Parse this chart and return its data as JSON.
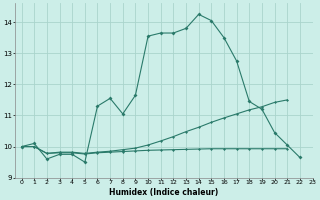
{
  "xlabel": "Humidex (Indice chaleur)",
  "bg_color": "#cceee8",
  "line_color": "#2a7a6a",
  "grid_color": "#aad4cc",
  "line1_y": [
    10.0,
    10.1,
    9.6,
    9.75,
    9.75,
    9.5,
    11.3,
    11.55,
    11.05,
    11.65,
    13.55,
    13.65,
    13.65,
    13.8,
    14.25,
    14.05,
    13.5,
    12.75,
    11.45,
    11.2,
    10.45,
    10.05,
    9.65,
    null
  ],
  "line2_y": [
    10.0,
    10.0,
    9.78,
    9.82,
    9.82,
    9.78,
    9.82,
    9.85,
    9.9,
    9.95,
    10.05,
    10.18,
    10.32,
    10.48,
    10.62,
    10.78,
    10.92,
    11.05,
    11.18,
    11.28,
    11.42,
    11.5,
    null,
    null
  ],
  "line3_y": [
    10.0,
    10.0,
    9.78,
    9.8,
    9.8,
    9.76,
    9.8,
    9.82,
    9.84,
    9.86,
    9.88,
    9.89,
    9.9,
    9.91,
    9.92,
    9.93,
    9.93,
    9.93,
    9.93,
    9.93,
    9.93,
    9.93,
    null,
    null
  ],
  "xlim": [
    -0.5,
    23
  ],
  "ylim": [
    9.0,
    14.6
  ],
  "yticks": [
    9,
    10,
    11,
    12,
    13,
    14
  ],
  "xticks": [
    0,
    1,
    2,
    3,
    4,
    5,
    6,
    7,
    8,
    9,
    10,
    11,
    12,
    13,
    14,
    15,
    16,
    17,
    18,
    19,
    20,
    21,
    22,
    23
  ],
  "xlabel_fontsize": 5.5,
  "tick_fontsize": 5.0
}
